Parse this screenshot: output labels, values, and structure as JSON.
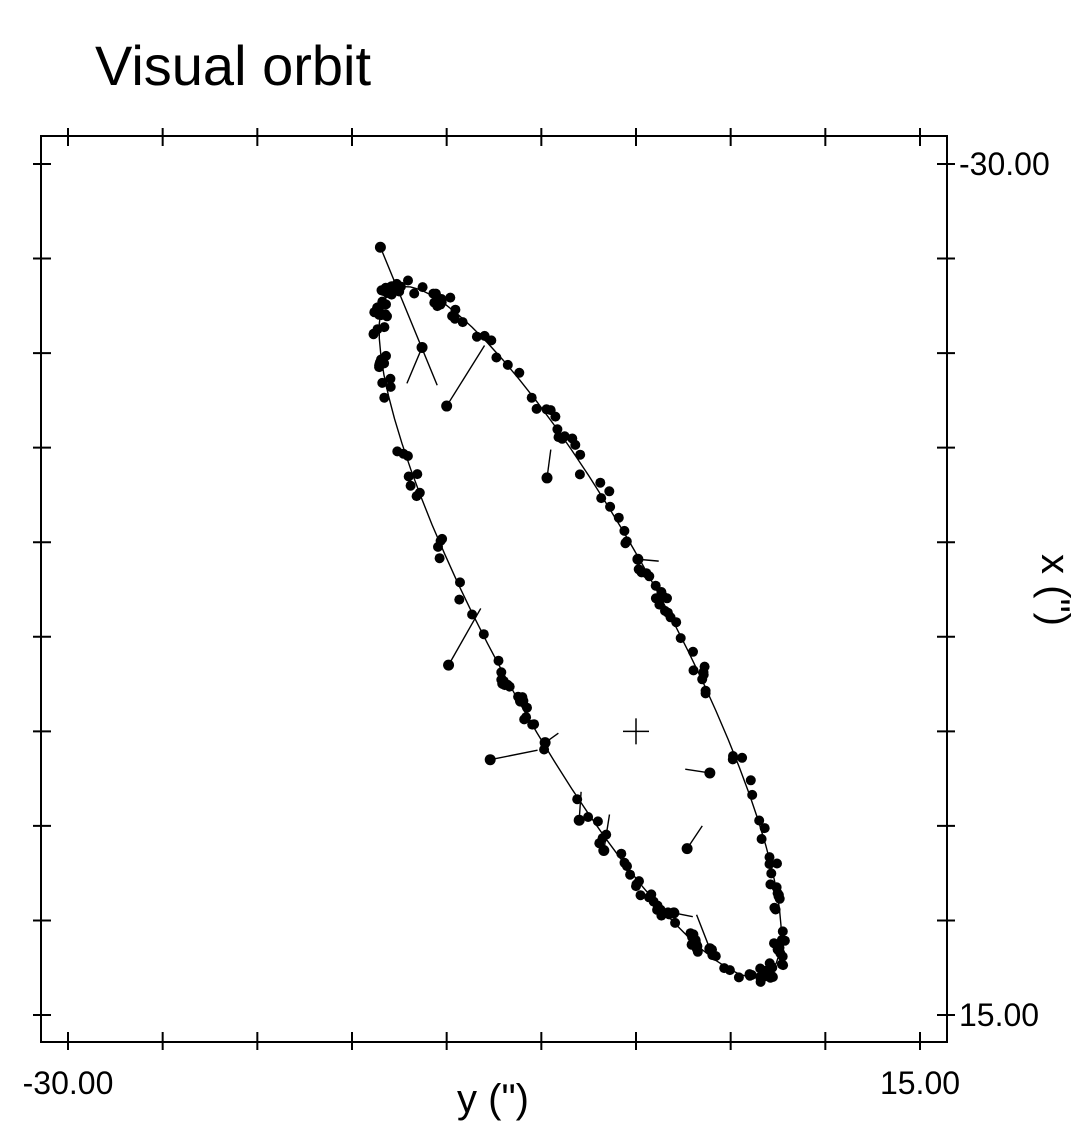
{
  "chart_data": {
    "type": "scatter",
    "title": "Visual orbit",
    "xlabel": "y (\")",
    "ylabel": "x (\")",
    "xlim": [
      -30.0,
      15.0
    ],
    "ylim": [
      -30.0,
      15.0
    ],
    "y_axis_inverted": true,
    "y_axis_side": "right",
    "x_tick_labels": [
      "-30.00",
      "15.00"
    ],
    "y_tick_labels": [
      "-30.00",
      "15.00"
    ],
    "x_ticks": [
      -30,
      -25,
      -20,
      -15,
      -10,
      -5,
      0,
      5,
      10,
      15
    ],
    "y_ticks": [
      -30,
      -25,
      -20,
      -15,
      -10,
      -5,
      0,
      5,
      10,
      15
    ],
    "grid": false,
    "center_marker": {
      "y": 0.0,
      "x": 0.0
    },
    "orbit": {
      "center": [
        -2.95,
        -5.25
      ],
      "semi_major": 20.63,
      "semi_minor": 4.61,
      "angle_deg": 61.6,
      "points": 72
    },
    "observations": [
      {
        "y": -13.5,
        "x": -25.6,
        "oy": -10.5,
        "ox": -18.3
      },
      {
        "y": -10.0,
        "x": -17.2,
        "oy": -8.0,
        "ox": -20.4
      },
      {
        "y": -11.3,
        "x": -20.3,
        "oy": -12.1,
        "ox": -18.4
      },
      {
        "y": -4.7,
        "x": -13.4,
        "oy": -4.5,
        "ox": -14.9
      },
      {
        "y": 0.1,
        "x": -9.1,
        "oy": 1.2,
        "ox": -9.0
      },
      {
        "y": -9.9,
        "x": -3.5,
        "oy": -8.2,
        "ox": -6.5
      },
      {
        "y": -7.7,
        "x": 1.5,
        "oy": -5.2,
        "ox": 1.0
      },
      {
        "y": -4.8,
        "x": 0.6,
        "oy": -4.1,
        "ox": 0.1
      },
      {
        "y": -6.1,
        "x": -1.6,
        "oy": -5.8,
        "ox": -1.4
      },
      {
        "y": -3.0,
        "x": 4.7,
        "oy": -2.9,
        "ox": 3.2
      },
      {
        "y": -1.7,
        "x": 6.3,
        "oy": -1.4,
        "ox": 4.4
      },
      {
        "y": 3.9,
        "x": 2.2,
        "oy": 2.6,
        "ox": 2.0
      },
      {
        "y": 2.7,
        "x": 6.2,
        "oy": 3.5,
        "ox": 5.0
      },
      {
        "y": 3.9,
        "x": 11.5,
        "oy": 3.2,
        "ox": 9.7
      },
      {
        "y": 2.0,
        "x": 9.6,
        "oy": 3.0,
        "ox": 9.8
      }
    ],
    "ellipse_data": {
      "center": [
        -2.95,
        -5.25
      ],
      "a": 20.63,
      "b": 4.61,
      "theta_deg": 61.6,
      "spread": 0.35,
      "count": 230
    }
  }
}
